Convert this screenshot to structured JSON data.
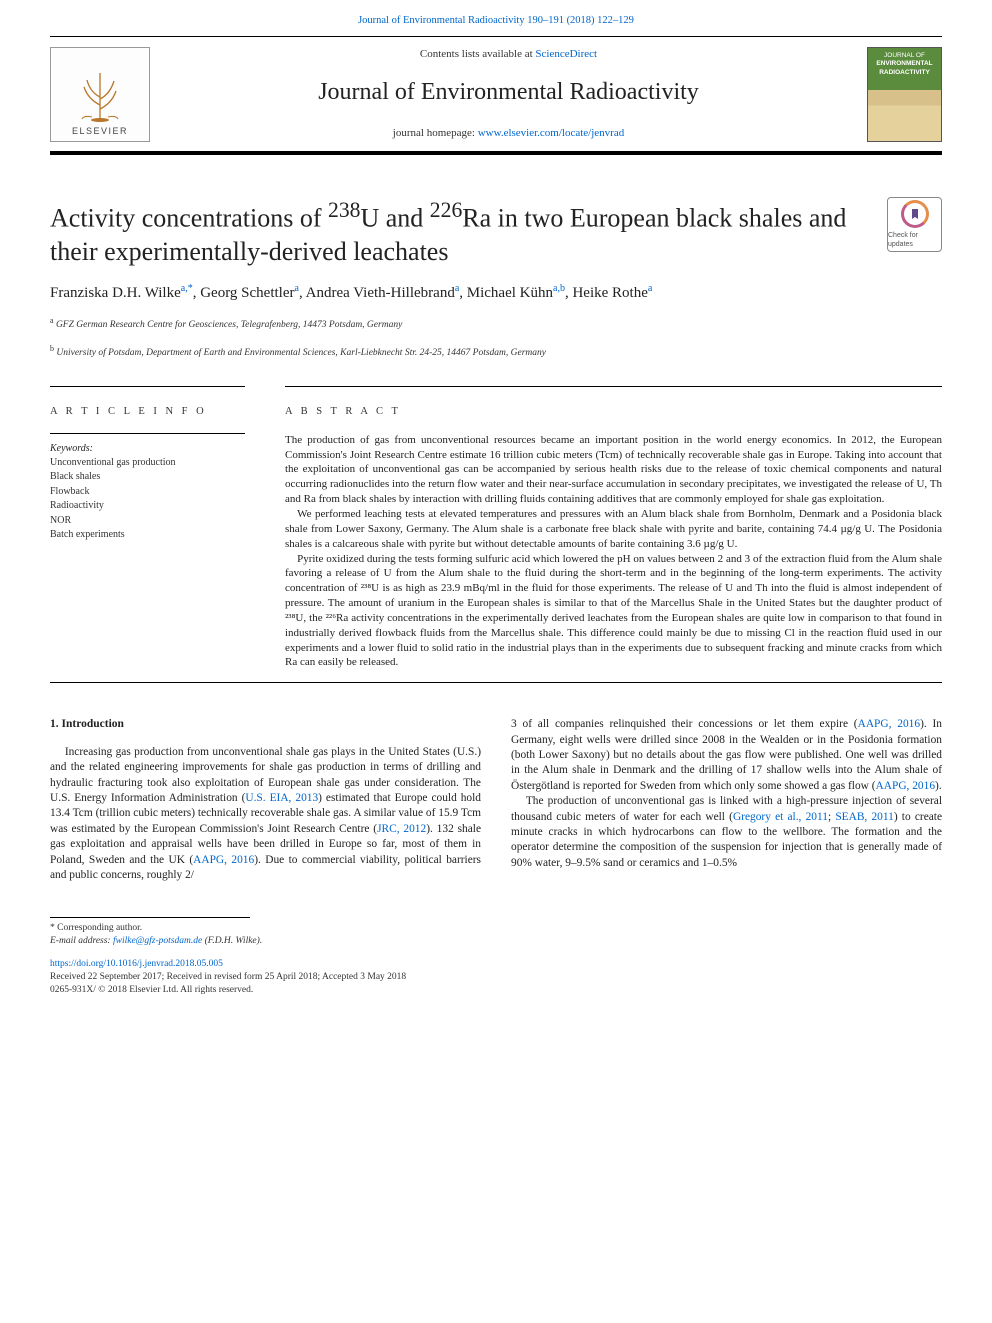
{
  "header": {
    "running_head": "Journal of Environmental Radioactivity 190–191 (2018) 122–129",
    "contents_prefix": "Contents lists available at ",
    "contents_link": "ScienceDirect",
    "journal_name": "Journal of Environmental Radioactivity",
    "homepage_prefix": "journal homepage: ",
    "homepage_url": "www.elsevier.com/locate/jenvrad",
    "elsevier_label": "ELSEVIER",
    "cover_text_top": "JOURNAL OF",
    "cover_text_mid": "ENVIRONMENTAL RADIOACTIVITY"
  },
  "check_updates": {
    "label": "Check for updates"
  },
  "article": {
    "title_html": "Activity concentrations of <sup>238</sup>U and <sup>226</sup>Ra in two European black shales and their experimentally-derived leachates",
    "authors_html": "Franziska D.H. Wilke<sup>a,*</sup>, Georg Schettler<sup>a</sup>, Andrea Vieth-Hillebrand<sup>a</sup>, Michael Kühn<sup>a,b</sup>, Heike Rothe<sup>a</sup>",
    "affiliations": [
      {
        "sup": "a",
        "text": "GFZ German Research Centre for Geosciences, Telegrafenberg, 14473 Potsdam, Germany"
      },
      {
        "sup": "b",
        "text": "University of Potsdam, Department of Earth and Environmental Sciences, Karl-Liebknecht Str. 24-25, 14467 Potsdam, Germany"
      }
    ]
  },
  "meta": {
    "article_info_heading": "A R T I C L E  I N F O",
    "abstract_heading": "A B S T R A C T",
    "keywords_label": "Keywords:",
    "keywords": [
      "Unconventional gas production",
      "Black shales",
      "Flowback",
      "Radioactivity",
      "NOR",
      "Batch experiments"
    ],
    "abstract_paragraphs": [
      "The production of gas from unconventional resources became an important position in the world energy economics. In 2012, the European Commission's Joint Research Centre estimate 16 trillion cubic meters (Tcm) of technically recoverable shale gas in Europe. Taking into account that the exploitation of unconventional gas can be accompanied by serious health risks due to the release of toxic chemical components and natural occurring radionuclides into the return flow water and their near-surface accumulation in secondary precipitates, we investigated the release of U, Th and Ra from black shales by interaction with drilling fluids containing additives that are commonly employed for shale gas exploitation.",
      "We performed leaching tests at elevated temperatures and pressures with an Alum black shale from Bornholm, Denmark and a Posidonia black shale from Lower Saxony, Germany. The Alum shale is a carbonate free black shale with pyrite and barite, containing 74.4 µg/g U. The Posidonia shales is a calcareous shale with pyrite but without detectable amounts of barite containing 3.6 µg/g U.",
      "Pyrite oxidized during the tests forming sulfuric acid which lowered the pH on values between 2 and 3 of the extraction fluid from the Alum shale favoring a release of U from the Alum shale to the fluid during the short-term and in the beginning of the long-term experiments. The activity concentration of ²³⁸U is as high as 23.9 mBq/ml in the fluid for those experiments. The release of U and Th into the fluid is almost independent of pressure. The amount of uranium in the European shales is similar to that of the Marcellus Shale in the United States but the daughter product of ²³⁸U, the ²²⁶Ra activity concentrations in the experimentally derived leachates from the European shales are quite low in comparison to that found in industrially derived flowback fluids from the Marcellus shale. This difference could mainly be due to missing Cl in the reaction fluid used in our experiments and a lower fluid to solid ratio in the industrial plays than in the experiments due to subsequent fracking and minute cracks from which Ra can easily be released."
    ]
  },
  "body": {
    "section_heading": "1. Introduction",
    "paragraphs": [
      "Increasing gas production from unconventional shale gas plays in the United States (U.S.) and the related engineering improvements for shale gas production in terms of drilling and hydraulic fracturing took also exploitation of European shale gas under consideration. The U.S. Energy Information Administration (<a data-name='citation-link' data-interactable='true'>U.S. EIA, 2013</a>) estimated that Europe could hold 13.4 Tcm (trillion cubic meters) technically recoverable shale gas. A similar value of 15.9 Tcm was estimated by the European Commission's Joint Research Centre (<a data-name='citation-link' data-interactable='true'>JRC, 2012</a>). 132 shale gas exploitation and appraisal wells have been drilled in Europe so far, most of them in Poland, Sweden and the UK (<a data-name='citation-link' data-interactable='true'>AAPG, 2016</a>). Due to commercial viability, political barriers and public concerns, roughly 2/",
      "3 of all companies relinquished their concessions or let them expire (<a data-name='citation-link' data-interactable='true'>AAPG, 2016</a>). In Germany, eight wells were drilled since 2008 in the Wealden or in the Posidonia formation (both Lower Saxony) but no details about the gas flow were published. One well was drilled in the Alum shale in Denmark and the drilling of 17 shallow wells into the Alum shale of Östergötland is reported for Sweden from which only some showed a gas flow (<a data-name='citation-link' data-interactable='true'>AAPG, 2016</a>).",
      "The production of unconventional gas is linked with a high-pressure injection of several thousand cubic meters of water for each well (<a data-name='citation-link' data-interactable='true'>Gregory et al., 2011</a>; <a data-name='citation-link' data-interactable='true'>SEAB, 2011</a>) to create minute cracks in which hydrocarbons can flow to the wellbore. The formation and the operator determine the composition of the suspension for injection that is generally made of 90% water, 9–9.5% sand or ceramics and 1–0.5%"
    ]
  },
  "footer": {
    "corr_label": "* Corresponding author.",
    "email_label": "E-mail address: ",
    "email": "fwilke@gfz-potsdam.de",
    "email_paren": " (F.D.H. Wilke).",
    "doi": "https://doi.org/10.1016/j.jenvrad.2018.05.005",
    "received": "Received 22 September 2017; Received in revised form 25 April 2018; Accepted 3 May 2018",
    "issn_line": "0265-931X/ © 2018 Elsevier Ltd. All rights reserved."
  },
  "colors": {
    "link": "#0066cc",
    "rule": "#000000",
    "text": "#222222",
    "cover_top": "#5b8c3e",
    "cover_bot": "#d7c08a"
  },
  "fonts": {
    "body_family": "Georgia, 'Times New Roman', serif",
    "title_pt": 26,
    "authors_pt": 15,
    "body_pt": 11.4,
    "abstract_pt": 11,
    "affil_pt": 9.5,
    "footer_pt": 9.5
  }
}
